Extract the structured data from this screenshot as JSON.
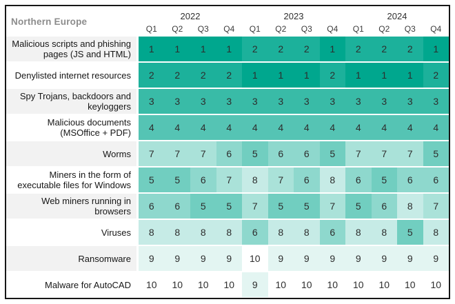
{
  "page": {
    "background": "#ffffff",
    "frame_border_color": "#161616"
  },
  "header": {
    "region_label": "Northern Europe",
    "years": [
      "2022",
      "2023",
      "2024"
    ],
    "quarters": [
      "Q1",
      "Q2",
      "Q3",
      "Q4"
    ]
  },
  "style_colors": {
    "label_alt_row_bg": "#f2f2f2",
    "region_label_color": "#8c8c8c",
    "cell_text_color": "#2d2d2d",
    "scale_low_color": "#00a78e",
    "scale_high_color": "#ffffff"
  },
  "chart_data": {
    "type": "heatmap",
    "title": "Northern Europe",
    "columns": [
      "2022 Q1",
      "2022 Q2",
      "2022 Q3",
      "2022 Q4",
      "2023 Q1",
      "2023 Q2",
      "2023 Q3",
      "2023 Q4",
      "2024 Q1",
      "2024 Q2",
      "2024 Q3",
      "2024 Q4"
    ],
    "value_range": [
      1,
      10
    ],
    "color_scale": {
      "low_value": 1,
      "low_color": "#00a78e",
      "high_value": 10,
      "high_color": "#ffffff"
    },
    "legend_position": "none",
    "grid": "off",
    "rows": [
      {
        "label": "Malicious scripts and phishing pages (JS and HTML)",
        "values": [
          1,
          1,
          1,
          1,
          2,
          2,
          2,
          1,
          2,
          2,
          2,
          1
        ]
      },
      {
        "label": "Denylisted internet resources",
        "values": [
          2,
          2,
          2,
          2,
          1,
          1,
          1,
          2,
          1,
          1,
          1,
          2
        ]
      },
      {
        "label": "Spy Trojans, backdoors and keyloggers",
        "values": [
          3,
          3,
          3,
          3,
          3,
          3,
          3,
          3,
          3,
          3,
          3,
          3
        ]
      },
      {
        "label": "Malicious documents (MSOffice + PDF)",
        "values": [
          4,
          4,
          4,
          4,
          4,
          4,
          4,
          4,
          4,
          4,
          4,
          4
        ]
      },
      {
        "label": "Worms",
        "values": [
          7,
          7,
          7,
          6,
          5,
          6,
          6,
          5,
          7,
          7,
          7,
          5
        ]
      },
      {
        "label": "Miners in the form of executable files for Windows",
        "values": [
          5,
          5,
          6,
          7,
          8,
          7,
          6,
          8,
          6,
          5,
          6,
          6
        ]
      },
      {
        "label": "Web miners running in browsers",
        "values": [
          6,
          6,
          5,
          5,
          7,
          5,
          5,
          7,
          5,
          6,
          8,
          7
        ]
      },
      {
        "label": "Viruses",
        "values": [
          8,
          8,
          8,
          8,
          6,
          8,
          8,
          6,
          8,
          8,
          5,
          8
        ]
      },
      {
        "label": "Ransomware",
        "values": [
          9,
          9,
          9,
          9,
          10,
          9,
          9,
          9,
          9,
          9,
          9,
          9
        ]
      },
      {
        "label": "Malware for AutoCAD",
        "values": [
          10,
          10,
          10,
          10,
          9,
          10,
          10,
          10,
          10,
          10,
          10,
          10
        ]
      }
    ]
  }
}
